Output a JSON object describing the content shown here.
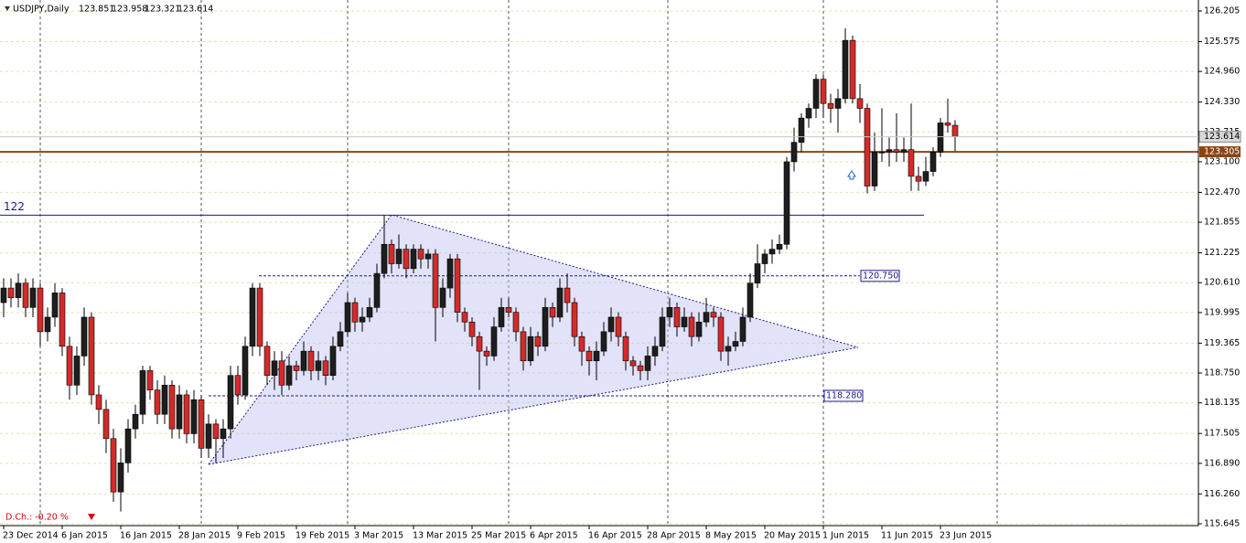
{
  "chart_data": {
    "type": "candlestick",
    "symbol": "USDJPY,Daily",
    "daily_change": "D.Ch.: -0.20 %",
    "bull_color": "#1e1e1e",
    "bear_color": "#d42a2a",
    "grid": true,
    "ylim": [
      115.645,
      126.205
    ],
    "yticks": [
      126.205,
      125.575,
      {
        "value": 124.96,
        "label": "124.960"
      },
      {
        "value": 124.33,
        "label": "124.330"
      },
      123.715,
      {
        "value": 123.1,
        "label": "123.100"
      },
      {
        "value": 122.47,
        "label": "122.470"
      },
      121.855,
      121.225,
      {
        "value": 120.61,
        "label": "120.610"
      },
      119.995,
      119.365,
      {
        "value": 118.75,
        "label": "118.750"
      },
      118.135,
      117.505,
      {
        "value": 116.89,
        "label": "116.890"
      },
      {
        "value": 116.26,
        "label": "116.260"
      },
      115.645
    ],
    "levels": [
      {
        "value": 123.305,
        "color": "#8b4513"
      },
      {
        "value": 122,
        "color": "#1a1a8c"
      },
      {
        "value": 120.75,
        "label": "120.750",
        "color": "#1a1a8c"
      },
      {
        "value": 118.28,
        "label": "118.280",
        "color": "#1a1a8c"
      }
    ],
    "categories": [
      "23 Dec 2014",
      null,
      null,
      null,
      null,
      null,
      null,
      null,
      "6 Jan 2015",
      null,
      null,
      null,
      null,
      null,
      null,
      null,
      "16 Jan 2015",
      null,
      null,
      null,
      null,
      null,
      null,
      null,
      "28 Jan 2015",
      null,
      null,
      null,
      null,
      null,
      null,
      null,
      "9 Feb 2015",
      null,
      null,
      null,
      null,
      null,
      null,
      null,
      "19 Feb 2015",
      null,
      null,
      null,
      null,
      null,
      null,
      null,
      "3 Mar 2015",
      null,
      null,
      null,
      null,
      null,
      null,
      null,
      "13 Mar 2015",
      null,
      null,
      null,
      null,
      null,
      null,
      null,
      "25 Mar 2015",
      null,
      null,
      null,
      null,
      null,
      null,
      null,
      "6 Apr 2015",
      null,
      null,
      null,
      null,
      null,
      null,
      null,
      "16 Apr 2015",
      null,
      null,
      null,
      null,
      null,
      null,
      null,
      "28 Apr 2015",
      null,
      null,
      null,
      null,
      null,
      null,
      null,
      "8 May 2015",
      null,
      null,
      null,
      null,
      null,
      null,
      null,
      "20 May 2015",
      null,
      null,
      null,
      null,
      null,
      null,
      null,
      "1 Jun 2015",
      null,
      null,
      null,
      null,
      null,
      null,
      null,
      "11 Jun 2015",
      null,
      null,
      null,
      null,
      null,
      null,
      null,
      "23 Jun 2015",
      null,
      null
    ],
    "ohlc": [
      [
        120.2,
        120.7,
        119.9,
        120.5
      ],
      [
        120.5,
        120.7,
        120.1,
        120.3
      ],
      [
        120.3,
        120.8,
        120.1,
        120.6
      ],
      [
        120.6,
        120.7,
        119.9,
        120.1
      ],
      [
        120.1,
        120.7,
        119.9,
        120.5
      ],
      [
        120.5,
        120.6,
        119.3,
        119.6
      ],
      [
        119.6,
        120.1,
        119.4,
        119.9
      ],
      [
        119.9,
        120.6,
        119.7,
        120.4
      ],
      [
        120.4,
        120.5,
        119.1,
        119.3
      ],
      [
        119.3,
        119.5,
        118.2,
        118.5
      ],
      [
        118.5,
        119.3,
        118.3,
        119.1
      ],
      [
        119.1,
        120.1,
        118.9,
        119.9
      ],
      [
        119.9,
        120.0,
        118.1,
        118.3
      ],
      [
        118.3,
        118.5,
        117.7,
        118.0
      ],
      [
        118.0,
        118.2,
        117.1,
        117.4
      ],
      [
        117.4,
        117.6,
        116.1,
        116.3
      ],
      [
        116.3,
        117.2,
        115.9,
        116.9
      ],
      [
        116.9,
        117.8,
        116.7,
        117.6
      ],
      [
        117.6,
        118.1,
        117.4,
        117.9
      ],
      [
        117.9,
        118.9,
        117.7,
        118.8
      ],
      [
        118.8,
        118.9,
        118.2,
        118.4
      ],
      [
        118.4,
        118.6,
        117.7,
        117.9
      ],
      [
        117.9,
        118.7,
        117.7,
        118.5
      ],
      [
        118.5,
        118.6,
        117.4,
        117.6
      ],
      [
        117.6,
        118.5,
        117.4,
        118.3
      ],
      [
        118.3,
        118.4,
        117.3,
        117.5
      ],
      [
        117.5,
        118.4,
        117.3,
        118.2
      ],
      [
        118.2,
        118.3,
        117.0,
        117.2
      ],
      [
        117.2,
        117.9,
        117.0,
        117.7
      ],
      [
        117.7,
        117.8,
        116.9,
        117.4
      ],
      [
        117.4,
        117.8,
        117.0,
        117.6
      ],
      [
        117.6,
        118.9,
        117.4,
        118.7
      ],
      [
        118.7,
        118.9,
        118.1,
        118.3
      ],
      [
        118.3,
        119.5,
        118.2,
        119.3
      ],
      [
        119.3,
        120.6,
        119.1,
        120.5
      ],
      [
        120.5,
        120.6,
        119.1,
        119.3
      ],
      [
        119.3,
        119.4,
        118.5,
        118.7
      ],
      [
        118.7,
        119.2,
        118.4,
        119.0
      ],
      [
        119.0,
        119.2,
        118.3,
        118.5
      ],
      [
        118.5,
        119.1,
        118.4,
        118.9
      ],
      [
        118.9,
        119.0,
        118.6,
        118.8
      ],
      [
        118.8,
        119.4,
        118.7,
        119.2
      ],
      [
        119.2,
        119.3,
        118.6,
        118.8
      ],
      [
        118.8,
        119.2,
        118.6,
        119.0
      ],
      [
        119.0,
        119.1,
        118.5,
        118.7
      ],
      [
        118.7,
        119.5,
        118.6,
        119.3
      ],
      [
        119.3,
        119.8,
        119.2,
        119.6
      ],
      [
        119.6,
        120.4,
        119.5,
        120.2
      ],
      [
        120.2,
        120.3,
        119.6,
        119.8
      ],
      [
        119.8,
        120.1,
        119.6,
        119.9
      ],
      [
        119.9,
        120.3,
        119.8,
        120.1
      ],
      [
        120.1,
        121.0,
        120.0,
        120.8
      ],
      [
        120.8,
        122.0,
        120.7,
        121.4
      ],
      [
        121.4,
        121.5,
        120.8,
        121.0
      ],
      [
        121.0,
        121.6,
        120.9,
        121.3
      ],
      [
        121.3,
        121.4,
        120.7,
        120.9
      ],
      [
        120.9,
        121.4,
        120.8,
        121.3
      ],
      [
        121.3,
        121.4,
        120.9,
        121.1
      ],
      [
        121.1,
        121.3,
        120.9,
        121.2
      ],
      [
        121.2,
        121.3,
        119.4,
        120.1
      ],
      [
        120.1,
        120.7,
        119.9,
        120.5
      ],
      [
        120.5,
        121.2,
        120.3,
        121.1
      ],
      [
        121.1,
        121.2,
        119.8,
        120.0
      ],
      [
        120.0,
        120.1,
        119.6,
        119.8
      ],
      [
        119.8,
        119.9,
        119.3,
        119.5
      ],
      [
        119.5,
        119.6,
        118.4,
        119.2
      ],
      [
        119.2,
        119.3,
        118.9,
        119.1
      ],
      [
        119.1,
        119.9,
        119.0,
        119.7
      ],
      [
        119.7,
        120.3,
        119.6,
        120.1
      ],
      [
        120.1,
        120.3,
        119.9,
        120.0
      ],
      [
        120.0,
        120.1,
        119.4,
        119.6
      ],
      [
        119.6,
        119.7,
        118.8,
        119.0
      ],
      [
        119.0,
        119.7,
        118.9,
        119.5
      ],
      [
        119.5,
        119.6,
        119.1,
        119.3
      ],
      [
        119.3,
        120.3,
        119.2,
        120.1
      ],
      [
        120.1,
        120.2,
        119.7,
        119.9
      ],
      [
        119.9,
        120.7,
        119.8,
        120.5
      ],
      [
        120.5,
        120.8,
        120.0,
        120.2
      ],
      [
        120.2,
        120.3,
        119.3,
        119.5
      ],
      [
        119.5,
        119.6,
        118.9,
        119.2
      ],
      [
        119.2,
        119.3,
        118.7,
        119.0
      ],
      [
        119.0,
        119.4,
        118.6,
        119.2
      ],
      [
        119.2,
        119.8,
        119.1,
        119.6
      ],
      [
        119.6,
        120.1,
        119.4,
        119.9
      ],
      [
        119.9,
        120.0,
        119.3,
        119.5
      ],
      [
        119.5,
        119.6,
        118.8,
        119.0
      ],
      [
        119.0,
        119.1,
        118.7,
        118.9
      ],
      [
        118.9,
        119.0,
        118.6,
        118.8
      ],
      [
        118.8,
        119.3,
        118.6,
        119.1
      ],
      [
        119.1,
        119.5,
        118.9,
        119.3
      ],
      [
        119.3,
        120.1,
        119.2,
        119.9
      ],
      [
        119.9,
        120.3,
        119.7,
        120.1
      ],
      [
        120.1,
        120.2,
        119.5,
        119.7
      ],
      [
        119.7,
        120.1,
        119.6,
        119.9
      ],
      [
        119.9,
        120.0,
        119.3,
        119.5
      ],
      [
        119.5,
        120.0,
        119.4,
        119.8
      ],
      [
        119.8,
        120.3,
        119.7,
        120.0
      ],
      [
        120.0,
        120.1,
        119.7,
        119.9
      ],
      [
        119.9,
        120.0,
        119.0,
        119.2
      ],
      [
        119.2,
        119.5,
        118.9,
        119.3
      ],
      [
        119.3,
        119.6,
        119.2,
        119.4
      ],
      [
        119.4,
        120.1,
        119.3,
        119.9
      ],
      [
        119.9,
        120.8,
        119.8,
        120.6
      ],
      [
        120.6,
        121.4,
        120.5,
        121.0
      ],
      [
        121.0,
        121.3,
        120.8,
        121.2
      ],
      [
        121.2,
        121.5,
        121.0,
        121.3
      ],
      [
        121.3,
        121.6,
        121.2,
        121.4
      ],
      [
        121.4,
        123.2,
        121.3,
        123.1
      ],
      [
        123.1,
        123.8,
        122.9,
        123.5
      ],
      [
        123.5,
        124.1,
        123.3,
        124.0
      ],
      [
        124.0,
        124.3,
        123.8,
        124.2
      ],
      [
        124.2,
        124.9,
        124.0,
        124.8
      ],
      [
        124.8,
        124.9,
        124.0,
        124.3
      ],
      [
        124.3,
        124.5,
        123.9,
        124.2
      ],
      [
        124.2,
        124.6,
        123.7,
        124.4
      ],
      [
        124.4,
        125.85,
        124.3,
        125.6
      ],
      [
        125.6,
        125.7,
        124.3,
        124.4
      ],
      [
        124.4,
        124.7,
        123.9,
        124.2
      ],
      [
        124.2,
        124.3,
        122.45,
        122.6
      ],
      [
        122.6,
        123.7,
        122.5,
        123.3
      ],
      [
        123.3,
        124.2,
        123.1,
        123.3
      ],
      [
        123.3,
        123.6,
        123.0,
        123.35
      ],
      [
        123.35,
        124.1,
        123.1,
        123.3
      ],
      [
        123.3,
        123.6,
        123.1,
        123.35
      ],
      [
        123.35,
        124.3,
        122.5,
        122.8
      ],
      [
        122.8,
        123.0,
        122.5,
        122.7
      ],
      [
        122.7,
        123.2,
        122.6,
        122.9
      ],
      [
        122.9,
        123.4,
        122.8,
        123.3
      ],
      [
        123.3,
        124.0,
        123.2,
        123.9
      ],
      [
        123.9,
        124.4,
        123.7,
        123.851
      ],
      [
        123.851,
        123.958,
        123.321,
        123.614
      ]
    ]
  }
}
